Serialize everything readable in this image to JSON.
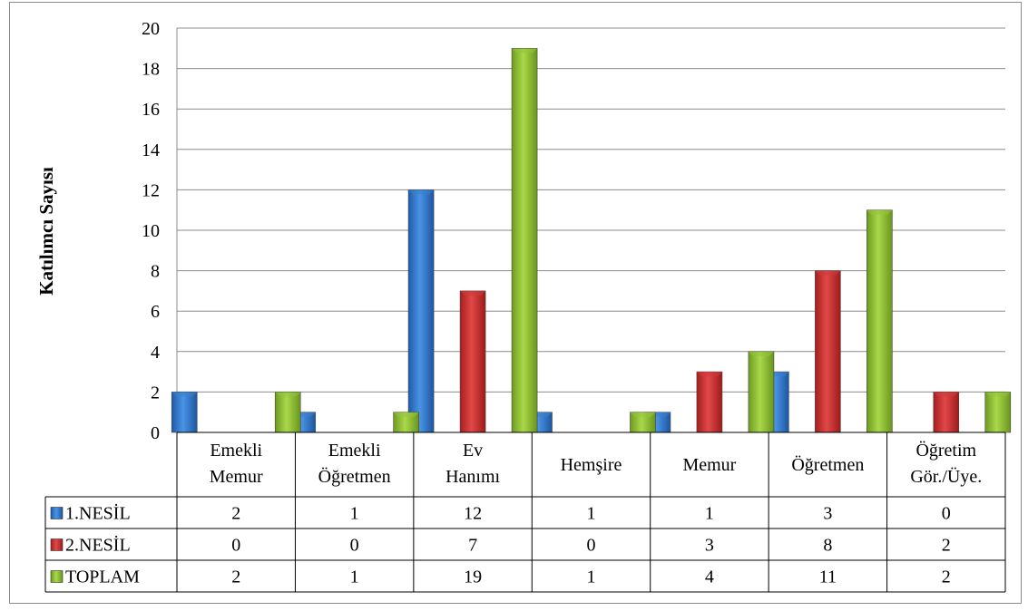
{
  "chart_data": {
    "type": "bar",
    "title": "",
    "ylabel": "Katılımcı Sayısı",
    "xlabel": "",
    "ylim": [
      0,
      20
    ],
    "yticks": [
      "0",
      "2",
      "4",
      "6",
      "8",
      "10",
      "12",
      "14",
      "16",
      "18",
      "20"
    ],
    "grid": true,
    "legend": "data-table",
    "categories": [
      [
        "Emekli",
        "Memur"
      ],
      [
        "Emekli",
        "Öğretmen"
      ],
      [
        "Ev",
        "Hanımı"
      ],
      [
        "Hemşire"
      ],
      [
        "Memur"
      ],
      [
        "Öğretmen"
      ],
      [
        "Öğretim",
        "Gör./Üye."
      ]
    ],
    "series": [
      {
        "name": "1.NESİL",
        "color": "#3a7fd0",
        "values": [
          2,
          1,
          12,
          1,
          1,
          3,
          0
        ]
      },
      {
        "name": "2.NESİL",
        "color": "#d03a3a",
        "values": [
          0,
          0,
          7,
          0,
          3,
          8,
          2
        ]
      },
      {
        "name": "TOPLAM",
        "color": "#94c43a",
        "values": [
          2,
          1,
          19,
          1,
          4,
          11,
          2
        ]
      }
    ]
  }
}
